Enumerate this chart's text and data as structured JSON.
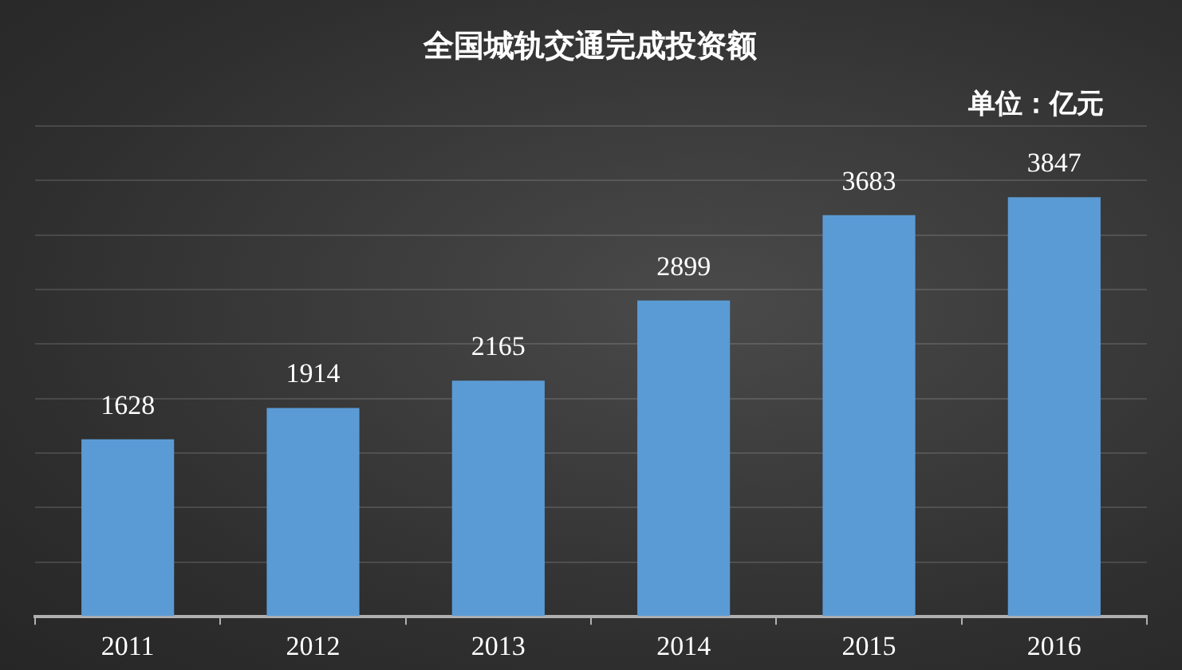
{
  "chart_data": {
    "type": "bar",
    "title": "全国城轨交通完成投资额",
    "annotations": [
      "单位：亿元"
    ],
    "categories": [
      "2011",
      "2012",
      "2013",
      "2014",
      "2015",
      "2016"
    ],
    "values": [
      1628,
      1914,
      2165,
      2899,
      3683,
      3847
    ],
    "color": "#5b9bd5",
    "ylim": [
      0,
      4500
    ],
    "yticks": [
      {
        "value": 0,
        "label": null
      },
      {
        "value": 500,
        "label": null
      },
      {
        "value": 1000,
        "label": null
      },
      {
        "value": 1500,
        "label": null
      },
      {
        "value": 2000,
        "label": null
      },
      {
        "value": 2500,
        "label": null
      },
      {
        "value": 3000,
        "label": null
      },
      {
        "value": 3500,
        "label": null
      },
      {
        "value": 4000,
        "label": null
      },
      {
        "value": 4500,
        "label": null
      }
    ],
    "grid": "y",
    "tick_labels": "x",
    "data_labels": true,
    "legend": false
  }
}
